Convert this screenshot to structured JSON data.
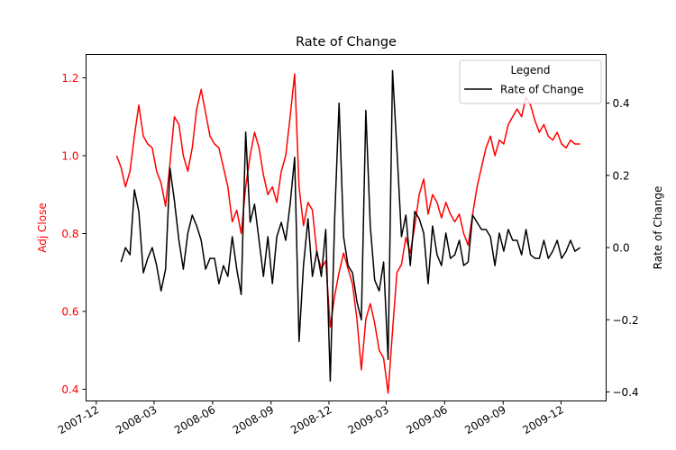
{
  "chart_data": {
    "type": "line",
    "title": "Rate of Change",
    "legend": {
      "title": "Legend",
      "entries": [
        "Rate of Change"
      ],
      "placement": "top-right"
    },
    "axes": {
      "x": {
        "type": "date",
        "range": [
          "2007-11-15",
          "2010-02-10"
        ],
        "ticks": [
          "2007-12",
          "2008-03",
          "2008-06",
          "2008-09",
          "2008-12",
          "2009-03",
          "2009-06",
          "2009-09",
          "2009-12"
        ]
      },
      "y_left": {
        "label": "Adj Close",
        "range": [
          0.37,
          1.26
        ],
        "ticks": [
          "0.4",
          "0.6",
          "0.8",
          "1.0",
          "1.2"
        ],
        "color": "#ff0000"
      },
      "y_right": {
        "label": "Rate of Change",
        "range": [
          -0.425,
          0.535
        ],
        "ticks": [
          "−0.4",
          "−0.2",
          "0.0",
          "0.2",
          "0.4"
        ],
        "color": "#000000"
      }
    },
    "series": [
      {
        "axis": "left",
        "color": "#ff0000",
        "points": [
          [
            "2008-01-02",
            1.0
          ],
          [
            "2008-01-09",
            0.97
          ],
          [
            "2008-01-16",
            0.92
          ],
          [
            "2008-01-23",
            0.96
          ],
          [
            "2008-01-30",
            1.05
          ],
          [
            "2008-02-06",
            1.13
          ],
          [
            "2008-02-13",
            1.05
          ],
          [
            "2008-02-20",
            1.03
          ],
          [
            "2008-02-27",
            1.02
          ],
          [
            "2008-03-05",
            0.96
          ],
          [
            "2008-03-12",
            0.93
          ],
          [
            "2008-03-19",
            0.87
          ],
          [
            "2008-03-26",
            0.98
          ],
          [
            "2008-04-02",
            1.1
          ],
          [
            "2008-04-09",
            1.08
          ],
          [
            "2008-04-16",
            1.0
          ],
          [
            "2008-04-23",
            0.96
          ],
          [
            "2008-04-30",
            1.02
          ],
          [
            "2008-05-07",
            1.12
          ],
          [
            "2008-05-14",
            1.17
          ],
          [
            "2008-05-21",
            1.11
          ],
          [
            "2008-05-28",
            1.05
          ],
          [
            "2008-06-04",
            1.03
          ],
          [
            "2008-06-11",
            1.02
          ],
          [
            "2008-06-18",
            0.97
          ],
          [
            "2008-06-25",
            0.92
          ],
          [
            "2008-07-02",
            0.83
          ],
          [
            "2008-07-09",
            0.86
          ],
          [
            "2008-07-16",
            0.8
          ],
          [
            "2008-07-23",
            0.92
          ],
          [
            "2008-07-30",
            1.0
          ],
          [
            "2008-08-06",
            1.06
          ],
          [
            "2008-08-13",
            1.02
          ],
          [
            "2008-08-20",
            0.95
          ],
          [
            "2008-08-27",
            0.9
          ],
          [
            "2008-09-03",
            0.92
          ],
          [
            "2008-09-10",
            0.88
          ],
          [
            "2008-09-17",
            0.96
          ],
          [
            "2008-09-24",
            1.0
          ],
          [
            "2008-10-01",
            1.1
          ],
          [
            "2008-10-08",
            1.21
          ],
          [
            "2008-10-15",
            0.92
          ],
          [
            "2008-10-22",
            0.82
          ],
          [
            "2008-10-29",
            0.88
          ],
          [
            "2008-11-05",
            0.86
          ],
          [
            "2008-11-12",
            0.75
          ],
          [
            "2008-11-19",
            0.71
          ],
          [
            "2008-11-26",
            0.73
          ],
          [
            "2008-12-03",
            0.56
          ],
          [
            "2008-12-10",
            0.64
          ],
          [
            "2008-12-17",
            0.7
          ],
          [
            "2008-12-24",
            0.75
          ],
          [
            "2008-12-31",
            0.71
          ],
          [
            "2009-01-07",
            0.67
          ],
          [
            "2009-01-14",
            0.58
          ],
          [
            "2009-01-21",
            0.45
          ],
          [
            "2009-01-28",
            0.58
          ],
          [
            "2009-02-04",
            0.62
          ],
          [
            "2009-02-11",
            0.57
          ],
          [
            "2009-02-18",
            0.5
          ],
          [
            "2009-02-25",
            0.48
          ],
          [
            "2009-03-04",
            0.39
          ],
          [
            "2009-03-11",
            0.55
          ],
          [
            "2009-03-18",
            0.7
          ],
          [
            "2009-03-25",
            0.72
          ],
          [
            "2009-04-01",
            0.79
          ],
          [
            "2009-04-08",
            0.75
          ],
          [
            "2009-04-15",
            0.82
          ],
          [
            "2009-04-22",
            0.9
          ],
          [
            "2009-04-29",
            0.94
          ],
          [
            "2009-05-06",
            0.85
          ],
          [
            "2009-05-13",
            0.9
          ],
          [
            "2009-05-20",
            0.88
          ],
          [
            "2009-05-27",
            0.84
          ],
          [
            "2009-06-03",
            0.88
          ],
          [
            "2009-06-10",
            0.85
          ],
          [
            "2009-06-17",
            0.83
          ],
          [
            "2009-06-24",
            0.85
          ],
          [
            "2009-07-01",
            0.8
          ],
          [
            "2009-07-08",
            0.77
          ],
          [
            "2009-07-15",
            0.85
          ],
          [
            "2009-07-22",
            0.92
          ],
          [
            "2009-07-29",
            0.97
          ],
          [
            "2009-08-05",
            1.02
          ],
          [
            "2009-08-12",
            1.05
          ],
          [
            "2009-08-19",
            1.0
          ],
          [
            "2009-08-26",
            1.04
          ],
          [
            "2009-09-02",
            1.03
          ],
          [
            "2009-09-09",
            1.08
          ],
          [
            "2009-09-16",
            1.1
          ],
          [
            "2009-09-23",
            1.12
          ],
          [
            "2009-09-30",
            1.1
          ],
          [
            "2009-10-07",
            1.15
          ],
          [
            "2009-10-14",
            1.13
          ],
          [
            "2009-10-21",
            1.09
          ],
          [
            "2009-10-28",
            1.06
          ],
          [
            "2009-11-04",
            1.08
          ],
          [
            "2009-11-11",
            1.05
          ],
          [
            "2009-11-18",
            1.04
          ],
          [
            "2009-11-25",
            1.06
          ],
          [
            "2009-12-02",
            1.03
          ],
          [
            "2009-12-09",
            1.02
          ],
          [
            "2009-12-16",
            1.04
          ],
          [
            "2009-12-23",
            1.03
          ],
          [
            "2009-12-31",
            1.03
          ]
        ]
      },
      {
        "name": "Rate of Change",
        "axis": "right",
        "color": "#000000",
        "points": [
          [
            "2008-01-09",
            -0.04
          ],
          [
            "2008-01-16",
            0.0
          ],
          [
            "2008-01-23",
            -0.02
          ],
          [
            "2008-01-30",
            0.16
          ],
          [
            "2008-02-06",
            0.1
          ],
          [
            "2008-02-13",
            -0.07
          ],
          [
            "2008-02-20",
            -0.03
          ],
          [
            "2008-02-27",
            0.0
          ],
          [
            "2008-03-05",
            -0.05
          ],
          [
            "2008-03-12",
            -0.12
          ],
          [
            "2008-03-19",
            -0.06
          ],
          [
            "2008-03-26",
            0.22
          ],
          [
            "2008-04-02",
            0.13
          ],
          [
            "2008-04-09",
            0.02
          ],
          [
            "2008-04-16",
            -0.06
          ],
          [
            "2008-04-23",
            0.04
          ],
          [
            "2008-04-30",
            0.09
          ],
          [
            "2008-05-07",
            0.06
          ],
          [
            "2008-05-14",
            0.02
          ],
          [
            "2008-05-21",
            -0.06
          ],
          [
            "2008-05-28",
            -0.03
          ],
          [
            "2008-06-04",
            -0.03
          ],
          [
            "2008-06-11",
            -0.1
          ],
          [
            "2008-06-18",
            -0.05
          ],
          [
            "2008-06-25",
            -0.08
          ],
          [
            "2008-07-02",
            0.03
          ],
          [
            "2008-07-09",
            -0.06
          ],
          [
            "2008-07-16",
            -0.13
          ],
          [
            "2008-07-23",
            0.32
          ],
          [
            "2008-07-30",
            0.07
          ],
          [
            "2008-08-06",
            0.12
          ],
          [
            "2008-08-13",
            0.02
          ],
          [
            "2008-08-20",
            -0.08
          ],
          [
            "2008-08-27",
            0.03
          ],
          [
            "2008-09-03",
            -0.1
          ],
          [
            "2008-09-10",
            0.03
          ],
          [
            "2008-09-17",
            0.07
          ],
          [
            "2008-09-24",
            0.02
          ],
          [
            "2008-10-01",
            0.12
          ],
          [
            "2008-10-08",
            0.25
          ],
          [
            "2008-10-15",
            -0.26
          ],
          [
            "2008-10-22",
            -0.05
          ],
          [
            "2008-10-29",
            0.08
          ],
          [
            "2008-11-05",
            -0.08
          ],
          [
            "2008-11-12",
            -0.01
          ],
          [
            "2008-11-19",
            -0.08
          ],
          [
            "2008-11-26",
            0.05
          ],
          [
            "2008-12-03",
            -0.37
          ],
          [
            "2008-12-10",
            0.08
          ],
          [
            "2008-12-17",
            0.4
          ],
          [
            "2008-12-24",
            0.03
          ],
          [
            "2008-12-31",
            -0.05
          ],
          [
            "2009-01-07",
            -0.07
          ],
          [
            "2009-01-14",
            -0.15
          ],
          [
            "2009-01-21",
            -0.2
          ],
          [
            "2009-01-28",
            0.38
          ],
          [
            "2009-02-04",
            0.06
          ],
          [
            "2009-02-11",
            -0.09
          ],
          [
            "2009-02-18",
            -0.12
          ],
          [
            "2009-02-25",
            -0.04
          ],
          [
            "2009-03-04",
            -0.31
          ],
          [
            "2009-03-11",
            0.49
          ],
          [
            "2009-03-18",
            0.27
          ],
          [
            "2009-03-25",
            0.03
          ],
          [
            "2009-04-01",
            0.09
          ],
          [
            "2009-04-08",
            -0.05
          ],
          [
            "2009-04-15",
            0.1
          ],
          [
            "2009-04-22",
            0.08
          ],
          [
            "2009-04-29",
            0.04
          ],
          [
            "2009-05-06",
            -0.1
          ],
          [
            "2009-05-13",
            0.06
          ],
          [
            "2009-05-20",
            -0.02
          ],
          [
            "2009-05-27",
            -0.05
          ],
          [
            "2009-06-03",
            0.04
          ],
          [
            "2009-06-10",
            -0.03
          ],
          [
            "2009-06-17",
            -0.02
          ],
          [
            "2009-06-24",
            0.02
          ],
          [
            "2009-07-01",
            -0.05
          ],
          [
            "2009-07-08",
            -0.04
          ],
          [
            "2009-07-15",
            0.09
          ],
          [
            "2009-07-22",
            0.07
          ],
          [
            "2009-07-29",
            0.05
          ],
          [
            "2009-08-05",
            0.05
          ],
          [
            "2009-08-12",
            0.03
          ],
          [
            "2009-08-19",
            -0.05
          ],
          [
            "2009-08-26",
            0.04
          ],
          [
            "2009-09-02",
            -0.01
          ],
          [
            "2009-09-09",
            0.05
          ],
          [
            "2009-09-16",
            0.02
          ],
          [
            "2009-09-23",
            0.02
          ],
          [
            "2009-09-30",
            -0.02
          ],
          [
            "2009-10-07",
            0.05
          ],
          [
            "2009-10-14",
            -0.02
          ],
          [
            "2009-10-21",
            -0.03
          ],
          [
            "2009-10-28",
            -0.03
          ],
          [
            "2009-11-04",
            0.02
          ],
          [
            "2009-11-11",
            -0.03
          ],
          [
            "2009-11-18",
            -0.01
          ],
          [
            "2009-11-25",
            0.02
          ],
          [
            "2009-12-02",
            -0.03
          ],
          [
            "2009-12-09",
            -0.01
          ],
          [
            "2009-12-16",
            0.02
          ],
          [
            "2009-12-23",
            -0.01
          ],
          [
            "2009-12-31",
            0.0
          ]
        ]
      }
    ]
  }
}
